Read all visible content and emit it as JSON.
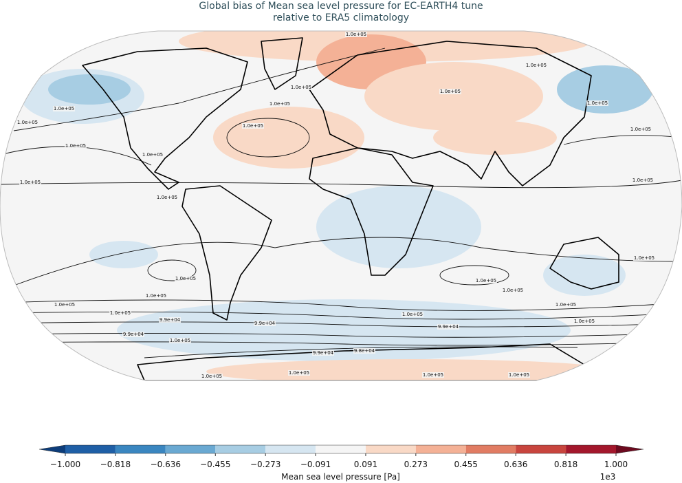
{
  "title": "Global bias of Mean sea level pressure for EC-EARTH4 tune",
  "subtitle": "relative to ERA5 climatology",
  "contour_labels": [
    "1.0e+05",
    "1.0e+05",
    "1.0e+05",
    "1.0e+05",
    "1.0e+05",
    "1.0e+05",
    "1.0e+05",
    "1.0e+05",
    "1.0e+05",
    "1.0e+05",
    "1.0e+05",
    "1.0e+05",
    "1.0e+05",
    "1.0e+05",
    "1.0e+05",
    "1.0e+05",
    "1.0e+05",
    "1.0e+05",
    "1.0e+05",
    "9.9e+04",
    "9.9e+04",
    "1.0e+05",
    "9.9e+04",
    "1.0e+05",
    "9.9e+04",
    "1.0e+05",
    "1.0e+05",
    "1.0e+05",
    "1.0e+05",
    "1.0e+05",
    "9.9e+04",
    "9.8e+04",
    "1.0e+05",
    "1.0e+05",
    "1.0e+05",
    "1.0e+05"
  ],
  "colorbar": {
    "ticks": [
      {
        "value": -1.0,
        "label": "−1.000"
      },
      {
        "value": -0.818,
        "label": "−0.818"
      },
      {
        "value": -0.636,
        "label": "−0.636"
      },
      {
        "value": -0.455,
        "label": "−0.455"
      },
      {
        "value": -0.273,
        "label": "−0.273"
      },
      {
        "value": -0.091,
        "label": "−0.091"
      },
      {
        "value": 0.091,
        "label": "0.091"
      },
      {
        "value": 0.273,
        "label": "0.273"
      },
      {
        "value": 0.455,
        "label": "0.455"
      },
      {
        "value": 0.636,
        "label": "0.636"
      },
      {
        "value": 0.818,
        "label": "0.818"
      },
      {
        "value": 1.0,
        "label": "1.000"
      }
    ],
    "colors": [
      "#1f5fa6",
      "#3a86c0",
      "#6aa9d2",
      "#a7cde3",
      "#d6e6f1",
      "#f5f5f5",
      "#f9d9c6",
      "#f4b196",
      "#e17c63",
      "#c8453e",
      "#a3172c"
    ],
    "extend_colors": [
      "#0d3d7a",
      "#6d0a1f"
    ],
    "label": "Mean sea level pressure [Pa]",
    "offset_label": "1e3"
  }
}
